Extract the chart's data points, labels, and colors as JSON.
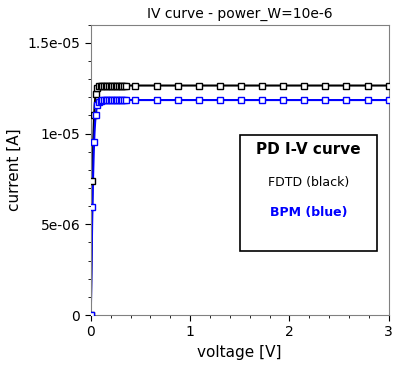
{
  "title": "IV curve - power_W=10e-6",
  "xlabel": "voltage [V]",
  "ylabel": "current [A]",
  "xlim": [
    0,
    3
  ],
  "ylim": [
    0,
    1.6e-05
  ],
  "yticks": [
    0,
    5e-06,
    1e-05,
    1.5e-05
  ],
  "xticks": [
    0,
    1,
    2,
    3
  ],
  "fdtd_color": "#000000",
  "bpm_color": "#0000ff",
  "fdtd_sat": 1.265e-05,
  "bpm_sat": 1.185e-05,
  "marker": "s",
  "markersize": 5,
  "linewidth": 1.5,
  "background_color": "#ffffff",
  "legend_title": "PD I-V curve",
  "legend_line1": "FDTD (black)",
  "legend_line2": "BPM (blue)"
}
